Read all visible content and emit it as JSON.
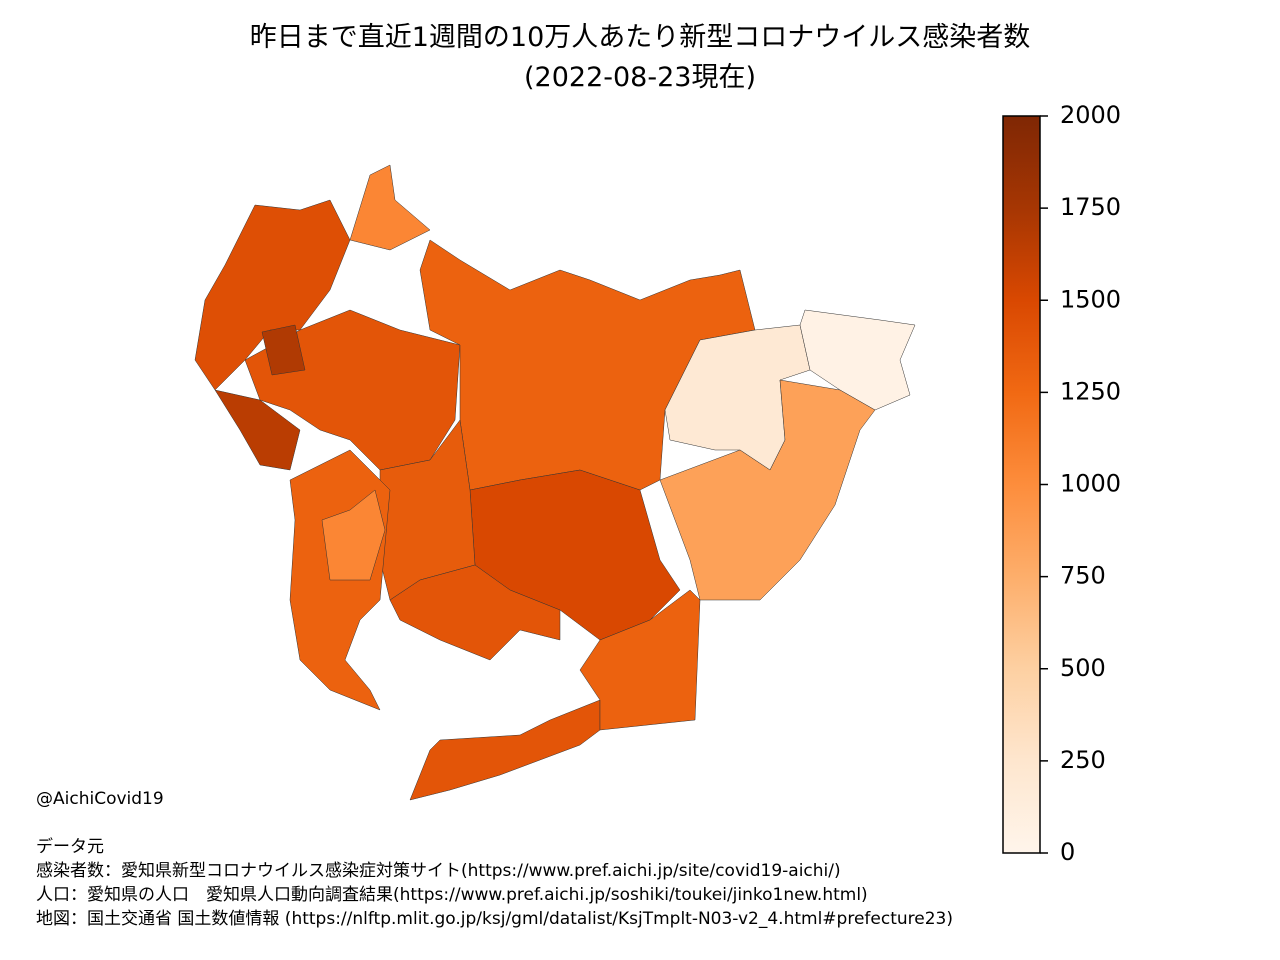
{
  "chart_data": {
    "type": "choropleth",
    "title": "昨日まで直近1週間の10万人あたり新型コロナウイルス感染者数",
    "subtitle": "(2022-08-23現在)",
    "values": [
      1450,
      1400,
      1700,
      1650,
      1050,
      1300,
      200,
      50,
      850,
      1500,
      1350,
      1300,
      1400,
      1400,
      1300,
      1050
    ],
    "colorbar": {
      "lim": [
        0,
        2000
      ],
      "ticks": [
        0,
        250,
        500,
        750,
        1000,
        1250,
        1500,
        1750,
        2000
      ],
      "colors": [
        "#fff5eb",
        "#fee6ce",
        "#fdd0a2",
        "#fdae6b",
        "#fd8d3c",
        "#f16913",
        "#d94801",
        "#a63603",
        "#7f2704"
      ]
    },
    "credit": "@AichiCovid19",
    "source_heading": "データ元",
    "sources": [
      "感染者数：愛知県新型コロナウイルス感染症対策サイト(https://www.pref.aichi.jp/site/covid19-aichi/)",
      "人口：愛知県の人口　愛知県人口動向調査結果(https://www.pref.aichi.jp/soshiki/toukei/jinko1new.html)",
      "地図：国土交通省 国土数値情報 (https://nlftp.mlit.go.jp/ksj/gml/datalist/KsjTmplt-N03-v2_4.html#prefecture23)"
    ]
  }
}
